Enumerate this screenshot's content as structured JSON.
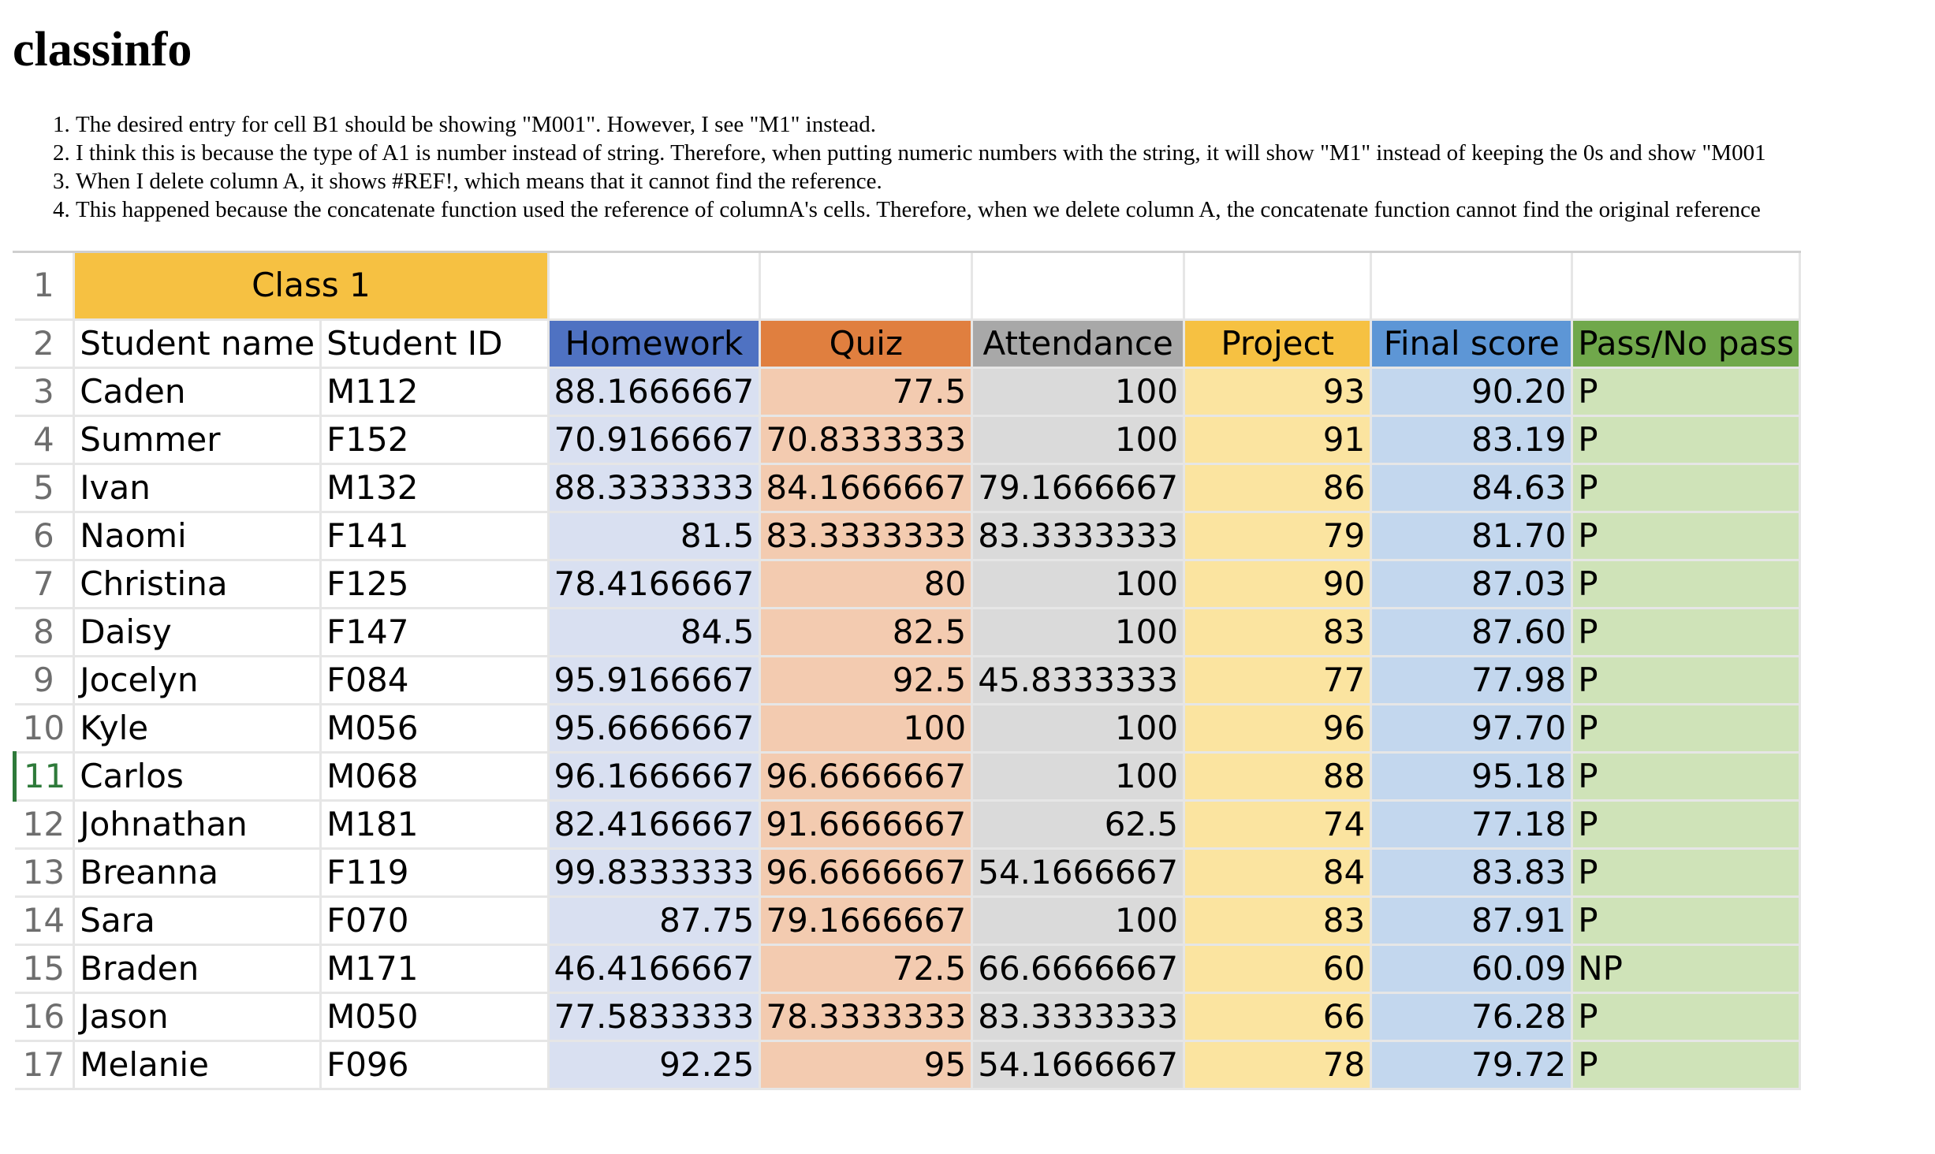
{
  "page_title": "classinfo",
  "notes": [
    "The desired entry for cell B1 should be showing \"M001\". However, I see \"M1\" instead.",
    "I think this is because the type of A1 is number instead of string. Therefore, when putting numeric numbers with the string, it will show \"M1\" instead of keeping the 0s and show \"M001",
    "When I delete column A, it shows #REF!, which means that it cannot find the reference.",
    "This happened because the concatenate function used the reference of columnA's cells. Therefore, when we delete column A, the concatenate function cannot find the original reference"
  ],
  "sheet": {
    "title_cell": "Class 1",
    "active_row": "11",
    "headers": {
      "student_name": "Student name",
      "student_id": "Student ID",
      "homework": "Homework",
      "quiz": "Quiz",
      "attendance": "Attendance",
      "project": "Project",
      "final_score": "Final score",
      "pass": "Pass/No pass"
    },
    "header_colors": {
      "title": "#f6c142",
      "homework": "#4f72c2",
      "quiz": "#e07f3f",
      "attendance": "#a8a8a8",
      "project": "#f6c142",
      "final_score": "#5d96d6",
      "pass": "#70a84b"
    },
    "rows": [
      {
        "row": "3",
        "name": "Caden",
        "id": "M112",
        "homework": "88.1666667",
        "quiz": "77.5",
        "attendance": "100",
        "project": "93",
        "final": "90.20",
        "pass": "P"
      },
      {
        "row": "4",
        "name": "Summer",
        "id": "F152",
        "homework": "70.9166667",
        "quiz": "70.8333333",
        "attendance": "100",
        "project": "91",
        "final": "83.19",
        "pass": "P"
      },
      {
        "row": "5",
        "name": "Ivan",
        "id": "M132",
        "homework": "88.3333333",
        "quiz": "84.1666667",
        "attendance": "79.1666667",
        "project": "86",
        "final": "84.63",
        "pass": "P"
      },
      {
        "row": "6",
        "name": "Naomi",
        "id": "F141",
        "homework": "81.5",
        "quiz": "83.3333333",
        "attendance": "83.3333333",
        "project": "79",
        "final": "81.70",
        "pass": "P"
      },
      {
        "row": "7",
        "name": "Christina",
        "id": "F125",
        "homework": "78.4166667",
        "quiz": "80",
        "attendance": "100",
        "project": "90",
        "final": "87.03",
        "pass": "P"
      },
      {
        "row": "8",
        "name": "Daisy",
        "id": "F147",
        "homework": "84.5",
        "quiz": "82.5",
        "attendance": "100",
        "project": "83",
        "final": "87.60",
        "pass": "P"
      },
      {
        "row": "9",
        "name": "Jocelyn",
        "id": "F084",
        "homework": "95.9166667",
        "quiz": "92.5",
        "attendance": "45.8333333",
        "project": "77",
        "final": "77.98",
        "pass": "P"
      },
      {
        "row": "10",
        "name": "Kyle",
        "id": "M056",
        "homework": "95.6666667",
        "quiz": "100",
        "attendance": "100",
        "project": "96",
        "final": "97.70",
        "pass": "P"
      },
      {
        "row": "11",
        "name": "Carlos",
        "id": "M068",
        "homework": "96.1666667",
        "quiz": "96.6666667",
        "attendance": "100",
        "project": "88",
        "final": "95.18",
        "pass": "P"
      },
      {
        "row": "12",
        "name": "Johnathan",
        "id": "M181",
        "homework": "82.4166667",
        "quiz": "91.6666667",
        "attendance": "62.5",
        "project": "74",
        "final": "77.18",
        "pass": "P"
      },
      {
        "row": "13",
        "name": "Breanna",
        "id": "F119",
        "homework": "99.8333333",
        "quiz": "96.6666667",
        "attendance": "54.1666667",
        "project": "84",
        "final": "83.83",
        "pass": "P"
      },
      {
        "row": "14",
        "name": "Sara",
        "id": "F070",
        "homework": "87.75",
        "quiz": "79.1666667",
        "attendance": "100",
        "project": "83",
        "final": "87.91",
        "pass": "P"
      },
      {
        "row": "15",
        "name": "Braden",
        "id": "M171",
        "homework": "46.4166667",
        "quiz": "72.5",
        "attendance": "66.6666667",
        "project": "60",
        "final": "60.09",
        "pass": "NP"
      },
      {
        "row": "16",
        "name": "Jason",
        "id": "M050",
        "homework": "77.5833333",
        "quiz": "78.3333333",
        "attendance": "83.3333333",
        "project": "66",
        "final": "76.28",
        "pass": "P"
      },
      {
        "row": "17",
        "name": "Melanie",
        "id": "F096",
        "homework": "92.25",
        "quiz": "95",
        "attendance": "54.1666667",
        "project": "78",
        "final": "79.72",
        "pass": "P"
      }
    ]
  }
}
